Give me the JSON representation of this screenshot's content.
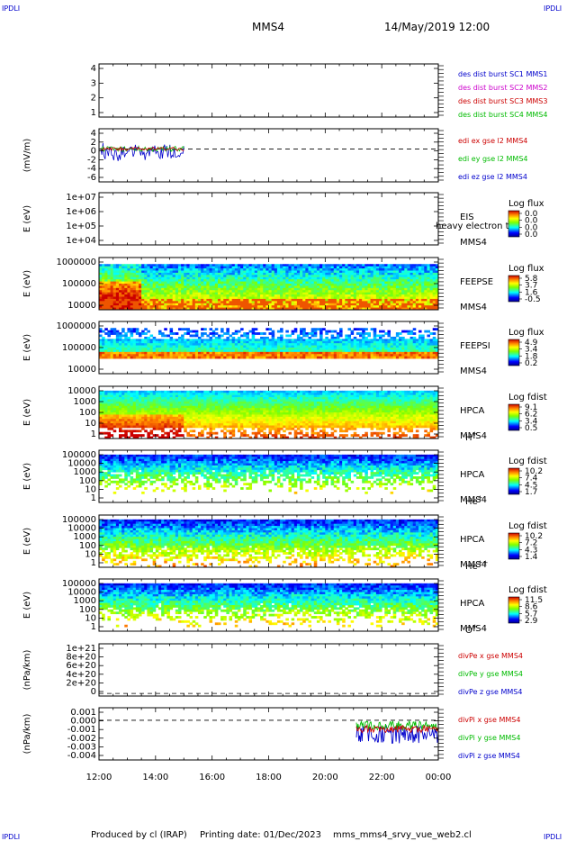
{
  "header": {
    "corner_left_top": "IPDLI",
    "corner_right_top": "IPDLI",
    "corner_left_bottom": "IPDLI",
    "corner_right_bottom": "IPDLI",
    "spacecraft": "MMS4",
    "date_time": "14/May/2019 12:00"
  },
  "footer": {
    "produced_by": "Produced by cl (IRAP)",
    "printing_date": "Printing date: 01/Dec/2023",
    "file_name": "mms_mms4_srvy_vue_web2.cl"
  },
  "colors": {
    "blue": "#0000cc",
    "magenta": "#cc00cc",
    "red": "#cc0000",
    "green": "#00bb00"
  },
  "chart_data": {
    "type": "multi-panel time series / spectrogram",
    "x_ticks": [
      "12:00",
      "14:00",
      "16:00",
      "18:00",
      "20:00",
      "22:00",
      "00:00"
    ],
    "panels": [
      {
        "id": "desdist",
        "type": "line",
        "ylabel": "",
        "y_ticks": [
          "4",
          "3",
          "2",
          "1"
        ],
        "legend": [
          {
            "text": "des dist burst SC1 MMS1",
            "color": "#0000cc"
          },
          {
            "text": "des dist burst SC2 MMS2",
            "color": "#cc00cc"
          },
          {
            "text": "des dist burst SC3 MMS3",
            "color": "#cc0000"
          },
          {
            "text": "des dist burst SC4 MMS4",
            "color": "#00bb00"
          }
        ]
      },
      {
        "id": "edi",
        "type": "line",
        "ylabel": "(mV/m)",
        "y_ticks": [
          "4",
          "2",
          "0",
          "-2",
          "-4",
          "-6"
        ],
        "legend": [
          {
            "text": "edi ex gse l2 MMS4",
            "color": "#cc0000"
          },
          {
            "text": "edi ey gse l2 MMS4",
            "color": "#00bb00"
          },
          {
            "text": "edi ez gse l2 MMS4",
            "color": "#0000cc"
          }
        ]
      },
      {
        "id": "eis",
        "type": "heatmap",
        "ylabel": "E (eV)",
        "y_ticks": [
          "1e+07",
          "1e+06",
          "1e+05",
          "1e+04"
        ],
        "right_labels": [
          "EIS",
          "MMS4"
        ],
        "overlay_text": "heavy electron to",
        "cbar_title": "Log flux",
        "cbar_ticks": [
          "0.0",
          "0.0",
          "0.0",
          "0.0"
        ]
      },
      {
        "id": "feepse",
        "type": "heatmap",
        "ylabel": "E (eV)",
        "y_ticks": [
          "1000000",
          "100000",
          "10000"
        ],
        "right_labels": [
          "FEEPSE",
          "MMS4"
        ],
        "cbar_title": "Log flux",
        "cbar_ticks": [
          "5.8",
          "3.7",
          "1.6",
          "-0.5"
        ]
      },
      {
        "id": "feepsi",
        "type": "heatmap",
        "ylabel": "E (eV)",
        "y_ticks": [
          "1000000",
          "100000",
          "10000"
        ],
        "right_labels": [
          "FEEPSI",
          "MMS4"
        ],
        "cbar_title": "Log flux",
        "cbar_ticks": [
          "4.9",
          "3.4",
          "1.8",
          "0.2"
        ]
      },
      {
        "id": "hpca_h",
        "type": "heatmap",
        "ylabel": "E (eV)",
        "y_ticks": [
          "10000",
          "1000",
          "100",
          "10",
          "1"
        ],
        "right_labels": [
          "HPCA",
          "MMS4"
        ],
        "species": "H",
        "species_sup": "+",
        "cbar_title": "Log fdist",
        "cbar_ticks": [
          "9.1",
          "6.2",
          "3.4",
          "0.5"
        ]
      },
      {
        "id": "hpca_he",
        "type": "heatmap",
        "ylabel": "E (eV)",
        "y_ticks": [
          "100000",
          "10000",
          "1000",
          "100",
          "10",
          "1"
        ],
        "right_labels": [
          "HPCA",
          "MMS4"
        ],
        "species": "He",
        "species_sup": "+",
        "cbar_title": "Log fdist",
        "cbar_ticks": [
          "10.2",
          "7.4",
          "4.5",
          "1.7"
        ]
      },
      {
        "id": "hpca_hepp",
        "type": "heatmap",
        "ylabel": "E (eV)",
        "y_ticks": [
          "100000",
          "10000",
          "1000",
          "100",
          "10",
          "1"
        ],
        "right_labels": [
          "HPCA",
          "MMS4"
        ],
        "species": "He",
        "species_sup": "++",
        "cbar_title": "Log fdist",
        "cbar_ticks": [
          "10.2",
          "7.2",
          "4.3",
          "1.4"
        ]
      },
      {
        "id": "hpca_o",
        "type": "heatmap",
        "ylabel": "E (eV)",
        "y_ticks": [
          "100000",
          "10000",
          "1000",
          "100",
          "10",
          "1"
        ],
        "right_labels": [
          "HPCA",
          "MMS4"
        ],
        "species": "O",
        "species_sup": "+",
        "cbar_title": "Log fdist",
        "cbar_ticks": [
          "11.5",
          "8.6",
          "5.7",
          "2.9"
        ]
      },
      {
        "id": "divpe",
        "type": "line",
        "ylabel": "(nPa/km)",
        "y_ticks": [
          "1e+21",
          "8e+20",
          "6e+20",
          "4e+20",
          "2e+20",
          "0"
        ],
        "legend": [
          {
            "text": "divPe x gse MMS4",
            "color": "#cc0000"
          },
          {
            "text": "divPe y gse MMS4",
            "color": "#00bb00"
          },
          {
            "text": "divPe z gse MMS4",
            "color": "#0000cc"
          }
        ]
      },
      {
        "id": "divpi",
        "type": "line",
        "ylabel": "(nPa/km)",
        "y_ticks": [
          "0.001",
          "0.000",
          "-0.001",
          "-0.002",
          "-0.003",
          "-0.004"
        ],
        "legend": [
          {
            "text": "divPi x gse MMS4",
            "color": "#cc0000"
          },
          {
            "text": "divPi y gse MMS4",
            "color": "#00bb00"
          },
          {
            "text": "divPi z gse MMS4",
            "color": "#0000cc"
          }
        ]
      }
    ]
  }
}
